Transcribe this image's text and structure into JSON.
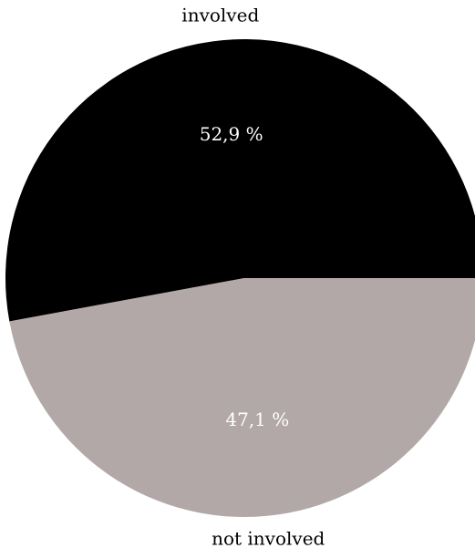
{
  "chart_data": {
    "type": "pie",
    "title": "",
    "start_angle_deg": 0,
    "direction": "counterclockwise",
    "slices": [
      {
        "label": "involved",
        "value": 52.9,
        "value_label": "52,9 %",
        "color": "#000000"
      },
      {
        "label": "not involved",
        "value": 47.1,
        "value_label": "47,1 %",
        "color": "#b3a8a8"
      }
    ]
  }
}
